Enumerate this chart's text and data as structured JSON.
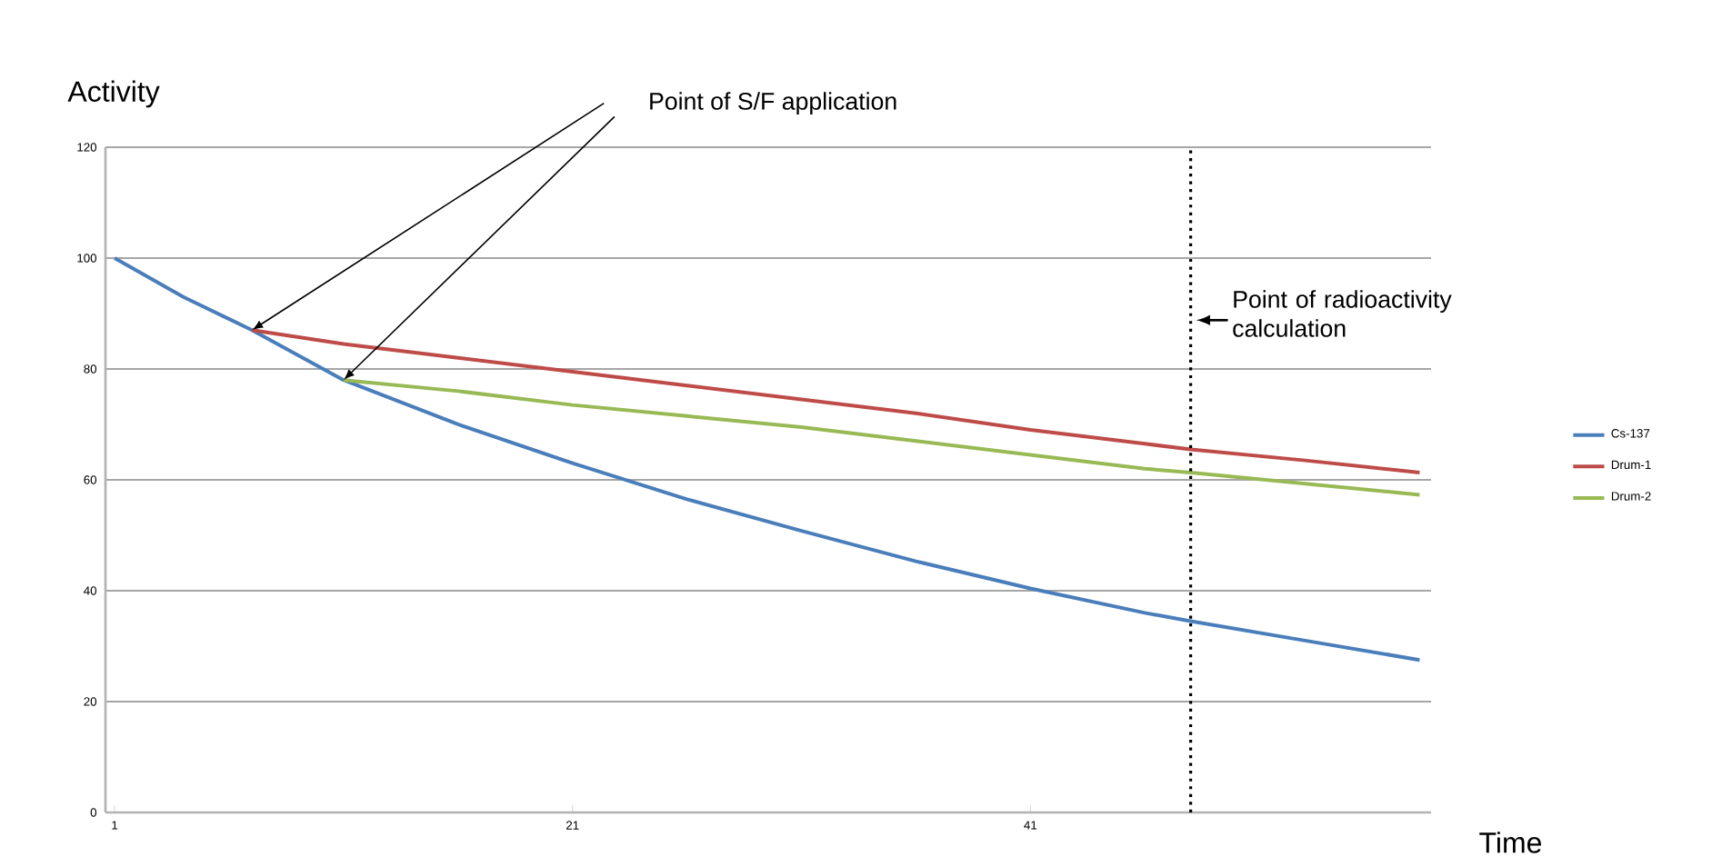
{
  "chart_data": {
    "type": "line",
    "xlabel": "Time",
    "ylabel": "Activity",
    "xlim": [
      0.6,
      58.5
    ],
    "xticks": [
      1,
      21,
      41
    ],
    "ylim": [
      0,
      120
    ],
    "yticks": [
      0,
      20,
      40,
      60,
      80,
      100,
      120
    ],
    "grid": "y",
    "legend": "right",
    "marker": "none",
    "line_style": "solid",
    "series": [
      {
        "name": "Cs-137",
        "color": "#4a7ebb",
        "x": [
          1,
          4,
          7,
          11,
          16,
          21,
          26,
          31,
          36,
          41,
          46,
          48,
          53,
          58
        ],
        "values": [
          100,
          93,
          87,
          78,
          70,
          63,
          56.5,
          50.8,
          45.3,
          40.4,
          36,
          34.5,
          31,
          27.5
        ]
      },
      {
        "name": "Drum-1",
        "color": "#be4b48",
        "x": [
          7,
          11,
          16,
          21,
          26,
          31,
          36,
          41,
          46,
          48,
          53,
          58
        ],
        "values": [
          87,
          84.5,
          82,
          79.5,
          77,
          74.5,
          72,
          69,
          66.5,
          65.5,
          63.5,
          61.3
        ]
      },
      {
        "name": "Drum-2",
        "color": "#98b954",
        "x": [
          11,
          16,
          21,
          26,
          31,
          36,
          41,
          46,
          48,
          53,
          58
        ],
        "values": [
          78,
          76,
          73.5,
          71.5,
          69.5,
          67,
          64.5,
          62,
          61.3,
          59.3,
          57.3
        ]
      }
    ],
    "ref_lines": [
      {
        "axis": "x",
        "value": 48,
        "label": "Point of radioactivity calculation",
        "color": "#000000",
        "line_style": "dotted"
      }
    ],
    "annotations": [
      "Point of S/F application"
    ]
  }
}
